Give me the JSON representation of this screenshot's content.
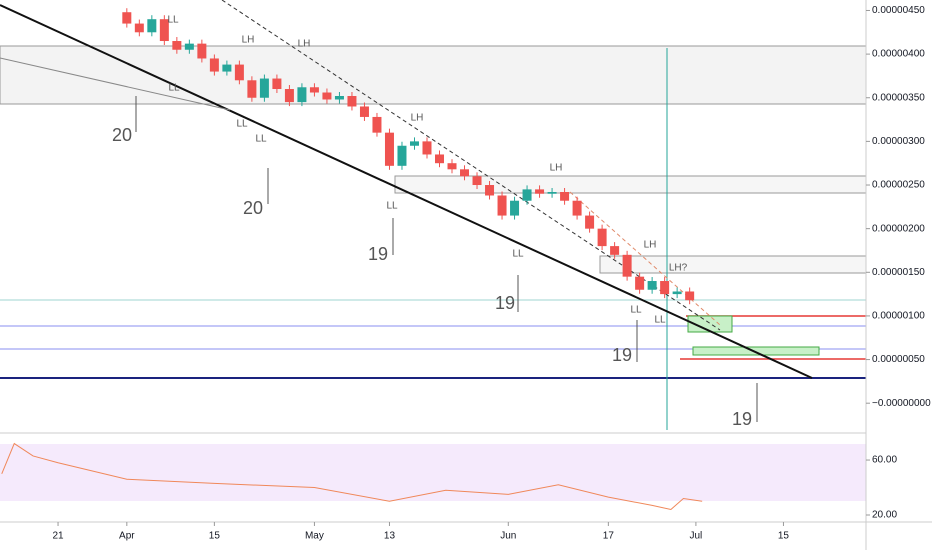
{
  "chart_data": [
    {
      "type": "candlestick",
      "x": [
        11,
        13,
        15,
        17,
        19,
        21,
        23,
        25,
        27,
        29,
        31,
        33,
        35,
        37,
        39,
        41,
        43,
        45,
        47,
        49,
        51,
        53,
        55,
        57,
        59,
        61,
        63,
        65,
        67,
        69,
        71,
        73,
        75,
        77,
        79,
        81,
        83,
        85,
        87,
        89,
        91,
        93,
        95,
        97,
        99,
        101
      ],
      "open": [
        4.48e-06,
        4.35e-06,
        4.25e-06,
        4.4e-06,
        4.15e-06,
        4.05e-06,
        4.12e-06,
        3.95e-06,
        3.8e-06,
        3.88e-06,
        3.7e-06,
        3.5e-06,
        3.72e-06,
        3.6e-06,
        3.45e-06,
        3.62e-06,
        3.56e-06,
        3.48e-06,
        3.52e-06,
        3.4e-06,
        3.28e-06,
        3.1e-06,
        2.72e-06,
        2.95e-06,
        3e-06,
        2.85e-06,
        2.75e-06,
        2.68e-06,
        2.6e-06,
        2.5e-06,
        2.38e-06,
        2.15e-06,
        2.32e-06,
        2.45e-06,
        2.4e-06,
        2.42e-06,
        2.32e-06,
        2.15e-06,
        2e-06,
        1.8e-06,
        1.7e-06,
        1.45e-06,
        1.3e-06,
        1.4e-06,
        1.25e-06,
        1.28e-06
      ],
      "close": [
        4.35e-06,
        4.25e-06,
        4.4e-06,
        4.15e-06,
        4.05e-06,
        4.12e-06,
        3.95e-06,
        3.8e-06,
        3.88e-06,
        3.7e-06,
        3.5e-06,
        3.72e-06,
        3.6e-06,
        3.45e-06,
        3.62e-06,
        3.56e-06,
        3.48e-06,
        3.52e-06,
        3.4e-06,
        3.28e-06,
        3.1e-06,
        2.72e-06,
        2.95e-06,
        3e-06,
        2.85e-06,
        2.75e-06,
        2.68e-06,
        2.6e-06,
        2.5e-06,
        2.38e-06,
        2.15e-06,
        2.32e-06,
        2.45e-06,
        2.4e-06,
        2.42e-06,
        2.32e-06,
        2.15e-06,
        2e-06,
        1.8e-06,
        1.7e-06,
        1.45e-06,
        1.3e-06,
        1.4e-06,
        1.25e-06,
        1.28e-06,
        1.18e-06
      ],
      "up_color": "#26a69a",
      "down_color": "#ef5350",
      "xlim": [
        -9.28,
        129.2
      ],
      "xticks": [
        {
          "value": 0,
          "label": "21"
        },
        {
          "value": 11,
          "label": "Apr"
        },
        {
          "value": 25,
          "label": "15"
        },
        {
          "value": 41,
          "label": "May"
        },
        {
          "value": 53,
          "label": "13"
        },
        {
          "value": 72,
          "label": "Jun"
        },
        {
          "value": 88,
          "label": "17"
        },
        {
          "value": 102,
          "label": "Jul"
        },
        {
          "value": 116,
          "label": "15"
        }
      ],
      "ylim": [
        -3.3e-07,
        4.62e-06
      ],
      "yticks": [
        {
          "value": 4.5e-06,
          "label": "0.00000450"
        },
        {
          "value": 4e-06,
          "label": "0.00000400"
        },
        {
          "value": 3.5e-06,
          "label": "0.00000350"
        },
        {
          "value": 3e-06,
          "label": "0.00000300"
        },
        {
          "value": 2.5e-06,
          "label": "0.00000250"
        },
        {
          "value": 2e-06,
          "label": "0.00000200"
        },
        {
          "value": 1.5e-06,
          "label": "0.00000150"
        },
        {
          "value": 1e-06,
          "label": "0.00000100"
        },
        {
          "value": 5e-07,
          "label": "0.00000050"
        },
        {
          "value": 0,
          "label": "−0.00000000"
        }
      ],
      "annotations": [
        "LL",
        "LH",
        "LH",
        "LL",
        "LL",
        "LL",
        "20",
        "20",
        "LH",
        "LL",
        "19",
        "LH",
        "LL",
        "19",
        "LH",
        "LH?",
        "LL",
        "LL",
        "19",
        "19"
      ]
    },
    {
      "type": "line",
      "color": "#f0885a",
      "x": [
        -9,
        -7,
        -4,
        0,
        11,
        25,
        41,
        53,
        62,
        72,
        80,
        88,
        95,
        98,
        100,
        103
      ],
      "values": [
        50,
        72,
        63,
        58,
        46,
        43,
        40,
        30,
        38,
        35,
        42,
        33,
        27,
        24,
        32,
        30
      ],
      "ylim": [
        14.9,
        77.5
      ],
      "yticks": [
        {
          "value": 60,
          "label": "60.00"
        },
        {
          "value": 20,
          "label": "20.00"
        }
      ]
    }
  ]
}
